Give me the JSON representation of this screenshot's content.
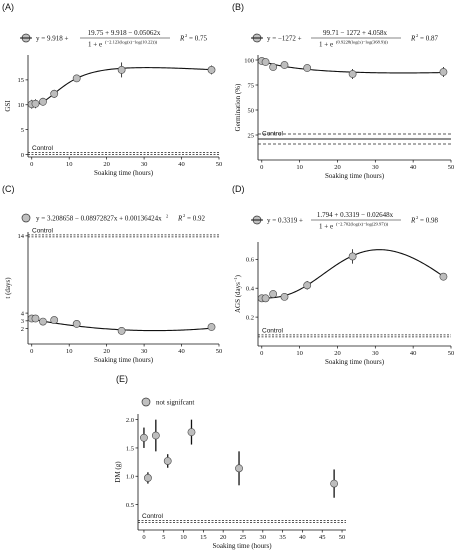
{
  "chart_data": [
    {
      "type": "scatter",
      "panel": "(A)",
      "equation": "y = 9.918 + (19.75 + 9.918 − 0.05062x) / (1 + e^(−2.123(log(x)−log(10.22))))",
      "eq_lhs": "y = 9.918 +",
      "eq_num": "19.75 + 9.918 − 0.05062x",
      "eq_den": "1 + e",
      "eq_exp": "(−2.123(log(x)−log(10.22)))",
      "r2_label": "R",
      "r2_value": "= 0.75",
      "ylabel": "GSI",
      "xlabel": "Soaking time (hours)",
      "control_label": "Control",
      "xlim": [
        -1,
        50
      ],
      "ylim": [
        -0.5,
        20
      ],
      "yticks": [
        "0",
        "5",
        "10",
        "15"
      ],
      "xticks": [
        "0",
        "10",
        "20",
        "30",
        "40",
        "50"
      ],
      "points": [
        {
          "x": 0,
          "y": 10.1,
          "err": 0.9
        },
        {
          "x": 1,
          "y": 10.2,
          "err": 0.9
        },
        {
          "x": 3,
          "y": 10.6,
          "err": 0.8
        },
        {
          "x": 6,
          "y": 12.2,
          "err": 0.8
        },
        {
          "x": 12,
          "y": 15.3,
          "err": 0.5
        },
        {
          "x": 24,
          "y": 17.0,
          "err": 1.5
        },
        {
          "x": 48,
          "y": 17.0,
          "err": 0.9
        }
      ],
      "control_y": 0.2,
      "curve": {
        "kind": "logistic",
        "a": 9.918,
        "b": 19.75,
        "c": 0.05062,
        "k": -2.123,
        "x0": 10.22
      }
    },
    {
      "type": "scatter",
      "panel": "(B)",
      "equation": "y = −1272 + (99.71 − 1272 + 4.058x) / (1 + e^(0.9228(log(x)−log(368.9))))",
      "eq_lhs": "y = −1272 +",
      "eq_num": "99.71 − 1272 + 4.058x",
      "eq_den": "1 + e",
      "eq_exp": "(0.9228(log(x)−log(368.9)))",
      "r2_label": "R",
      "r2_value": "= 0.87",
      "ylabel": "Germination (%)",
      "xlabel": "Soaking time (hours)",
      "control_label": "Control",
      "xlim": [
        -1,
        50
      ],
      "ylim": [
        0,
        105
      ],
      "yticks": [
        "25",
        "50",
        "75",
        "100"
      ],
      "xticks": [
        "0",
        "10",
        "20",
        "30",
        "40",
        "50"
      ],
      "points": [
        {
          "x": 0,
          "y": 99,
          "err": 2
        },
        {
          "x": 1,
          "y": 98,
          "err": 2
        },
        {
          "x": 3,
          "y": 93,
          "err": 3
        },
        {
          "x": 6,
          "y": 95,
          "err": 2
        },
        {
          "x": 12,
          "y": 92,
          "err": 3
        },
        {
          "x": 24,
          "y": 86,
          "err": 5
        },
        {
          "x": 48,
          "y": 88,
          "err": 5
        }
      ],
      "control_y": 21,
      "control_band": [
        16,
        26
      ],
      "curve": {
        "kind": "loglogistic",
        "a": -1272,
        "b": 99.71,
        "c": -4.058,
        "k": 0.9228,
        "x0": 368.9
      }
    },
    {
      "type": "scatter",
      "panel": "(C)",
      "equation": "y = 3.208658 − 0.08972827x + 0.00136424x²",
      "eq_text": "y = 3.208658 − 0.08972827x + 0.00136424x",
      "eq_sup": "2",
      "r2_label": "R",
      "r2_value": "= 0.92",
      "ylabel": "t (days)",
      "xlabel": "Soaking time (hours)",
      "control_label": "Control",
      "xlim": [
        -1,
        50
      ],
      "ylim": [
        0,
        14.5
      ],
      "yticks": [
        "2",
        "3",
        "4",
        "14"
      ],
      "ytick_values": [
        2,
        3,
        4,
        14
      ],
      "xticks": [
        "0",
        "10",
        "20",
        "30",
        "40",
        "50"
      ],
      "points": [
        {
          "x": 0,
          "y": 3.3,
          "err": 0.1
        },
        {
          "x": 1,
          "y": 3.3,
          "err": 0.1
        },
        {
          "x": 3,
          "y": 2.9,
          "err": 0.1
        },
        {
          "x": 6,
          "y": 3.1,
          "err": 0.1
        },
        {
          "x": 12,
          "y": 2.6,
          "err": 0.1
        },
        {
          "x": 24,
          "y": 1.7,
          "err": 0.1
        },
        {
          "x": 48,
          "y": 2.2,
          "err": 0.1
        }
      ],
      "control_y": 14,
      "curve": {
        "kind": "poly2",
        "c0": 3.208658,
        "c1": -0.08972827,
        "c2": 0.00136424
      }
    },
    {
      "type": "scatter",
      "panel": "(D)",
      "equation": "y = 0.3319 + (1.794 + 0.3319 − 0.02648x) / (1 + e^(−2.702(log(x)−log(29.97))))",
      "eq_lhs": "y = 0.3319 +",
      "eq_num": "1.794 + 0.3319 − 0.02648x",
      "eq_den": "1 + e",
      "eq_exp": "(−2.702(log(x)−log(29.97)))",
      "r2_label": "R",
      "r2_value": "= 0.98",
      "ylabel": "AGS (days",
      "ylabel_sup": "−1",
      "ylabel_end": ")",
      "xlabel": "Soaking time (hours)",
      "control_label": "Control",
      "xlim": [
        -1,
        50
      ],
      "ylim": [
        0,
        0.72
      ],
      "yticks": [
        "0.2",
        "0.4",
        "0.6"
      ],
      "ytick_values": [
        0.2,
        0.4,
        0.6
      ],
      "xticks": [
        "0",
        "10",
        "20",
        "30",
        "40",
        "50"
      ],
      "points": [
        {
          "x": 0,
          "y": 0.33,
          "err": 0.015
        },
        {
          "x": 1,
          "y": 0.33,
          "err": 0.015
        },
        {
          "x": 3,
          "y": 0.36,
          "err": 0.015
        },
        {
          "x": 6,
          "y": 0.34,
          "err": 0.015
        },
        {
          "x": 12,
          "y": 0.42,
          "err": 0.03
        },
        {
          "x": 24,
          "y": 0.62,
          "err": 0.05
        },
        {
          "x": 48,
          "y": 0.48,
          "err": 0.015
        }
      ],
      "control_y": 0.07,
      "curve": {
        "kind": "logistic",
        "a": 0.3319,
        "b": 1.794,
        "c": 0.02648,
        "k": -2.702,
        "x0": 29.97
      }
    },
    {
      "type": "scatter",
      "panel": "(E)",
      "legend": "not significant",
      "legend_text": "not signifcant",
      "ylabel": "DM (g)",
      "xlabel": "Soaking time (hours)",
      "control_label": "Control",
      "xlim": [
        -1.5,
        51
      ],
      "ylim": [
        0.05,
        2.1
      ],
      "yticks": [
        "0.5",
        "1.0",
        "1.5",
        "2.0"
      ],
      "ytick_values": [
        0.5,
        1.0,
        1.5,
        2.0
      ],
      "xticks": [
        "0",
        "5",
        "10",
        "15",
        "20",
        "25",
        "30",
        "35",
        "40",
        "45",
        "50"
      ],
      "points": [
        {
          "x": 0,
          "y": 1.68,
          "err": 0.18
        },
        {
          "x": 1,
          "y": 0.97,
          "err": 0.1
        },
        {
          "x": 3,
          "y": 1.72,
          "err": 0.28
        },
        {
          "x": 6,
          "y": 1.27,
          "err": 0.12
        },
        {
          "x": 12,
          "y": 1.78,
          "err": 0.22
        },
        {
          "x": 24,
          "y": 1.14,
          "err": 0.3
        },
        {
          "x": 48,
          "y": 0.87,
          "err": 0.25
        }
      ],
      "control_y": 0.2
    }
  ]
}
